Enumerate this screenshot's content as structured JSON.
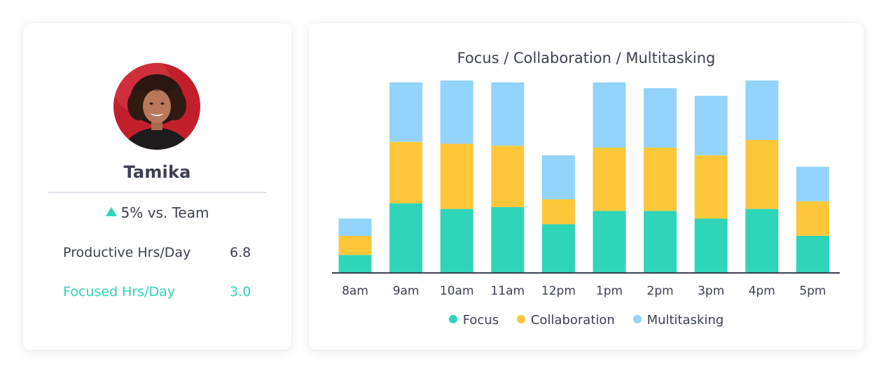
{
  "profile": {
    "name": "Tamika",
    "comparison": "5% vs. Team",
    "stats": [
      {
        "label": "Productive Hrs/Day",
        "value": "6.8"
      },
      {
        "label": "Focused Hrs/Day",
        "value": "3.0"
      }
    ]
  },
  "colors": {
    "focus": "#2fd5b8",
    "collaboration": "#fec73a",
    "multitasking": "#92d4fc",
    "accent": "#2fd3b7",
    "axis": "#3b4150"
  },
  "chart_data": {
    "type": "bar",
    "stacked": true,
    "title": "Focus / Collaboration / Multitasking",
    "categories": [
      "8am",
      "9am",
      "10am",
      "11am",
      "12pm",
      "1pm",
      "2pm",
      "3pm",
      "4pm",
      "5pm"
    ],
    "series": [
      {
        "name": "Focus",
        "values": [
          9,
          36,
          33,
          34,
          25,
          32,
          32,
          28,
          33,
          19
        ]
      },
      {
        "name": "Collaboration",
        "values": [
          10,
          32,
          34,
          32,
          13,
          33,
          33,
          33,
          36,
          18
        ]
      },
      {
        "name": "Multitasking",
        "values": [
          9,
          31,
          33,
          33,
          23,
          34,
          31,
          31,
          31,
          18
        ]
      }
    ],
    "ylim": [
      0,
      100
    ],
    "grid": false,
    "legend_position": "bottom"
  }
}
